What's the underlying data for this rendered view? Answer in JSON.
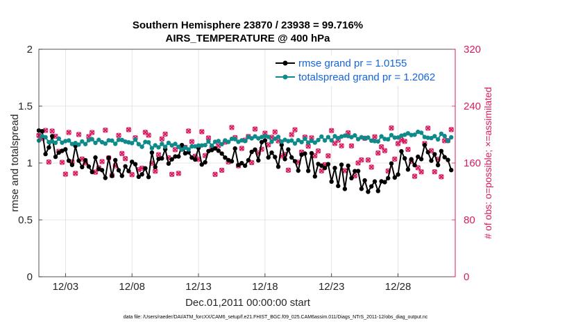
{
  "chart_data": {
    "type": "line",
    "title": "Southern Hemisphere 23870 / 23938 = 99.716%",
    "subtitle": "AIRS_TEMPERATURE @ 400 hPa",
    "xlabel": "Dec.01,2011 00:00:00 start",
    "ylabel": "rmse and totalspread",
    "ylabel_right": "# of obs: o=possible; ×=assimilated",
    "ylim": [
      0,
      2
    ],
    "ylim_right": [
      0,
      320
    ],
    "xlim": [
      1,
      32.3
    ],
    "x_ticks": [
      3,
      8,
      13,
      18,
      23,
      28
    ],
    "x_tick_labels": [
      "12/03",
      "12/08",
      "12/13",
      "12/18",
      "12/23",
      "12/28"
    ],
    "y_ticks": [
      0,
      0.5,
      1,
      1.5,
      2
    ],
    "y_tick_labels": [
      "0",
      "0.5",
      "1",
      "1.5",
      "2"
    ],
    "y_ticks_right": [
      0,
      80,
      160,
      240,
      320
    ],
    "y_tick_labels_right": [
      "0",
      "80",
      "160",
      "240",
      "320"
    ],
    "grid": true,
    "legend_position": "top-right",
    "series_colors": {
      "rmse": "#000000",
      "totalspread": "#0f8a8a",
      "obs": "#d81b60"
    },
    "series": [
      {
        "name": "rmse grand pr = 1.0155",
        "values": [
          1.2,
          1.05,
          0.95,
          0.98,
          1.12,
          1.0,
          1.1,
          1.02,
          0.88,
          0.85,
          1.08,
          1.0
        ]
      },
      {
        "name": "totalspread grand pr = 1.2062",
        "values": [
          1.22,
          1.18,
          1.2,
          1.16,
          1.14,
          1.2,
          1.22,
          1.18,
          1.24,
          1.2,
          1.26,
          1.22
        ]
      }
    ],
    "footnote": "data file: /Users/raeder/DAI/ATM_forcXX/CAM6_setup/f.e21.FHIST_BGC.f09_025.CAM6assim.011/Diags_NTrS_2011-12/obs_diag_output.nc"
  }
}
